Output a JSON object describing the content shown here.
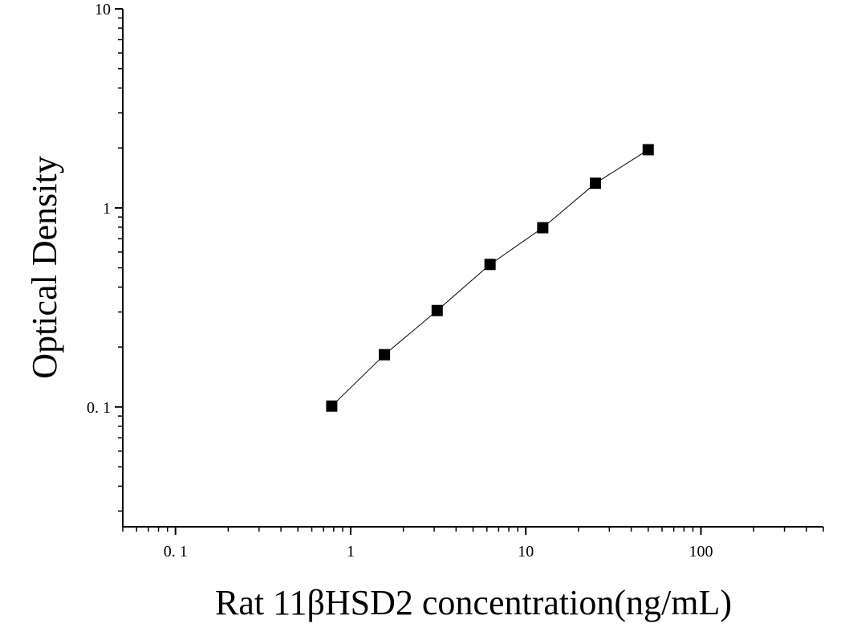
{
  "chart_data": {
    "type": "scatter",
    "title": "",
    "xlabel": "Rat 11βHSD2 concentration(ng/mL)",
    "ylabel": "Optical Density",
    "x_scale": "log",
    "y_scale": "log",
    "xlim": [
      0.05,
      500
    ],
    "ylim": [
      0.025,
      10
    ],
    "x_ticks": [
      {
        "value": 0.1,
        "label": "0. 1"
      },
      {
        "value": 1,
        "label": "1"
      },
      {
        "value": 10,
        "label": "10"
      },
      {
        "value": 100,
        "label": "100"
      }
    ],
    "y_ticks": [
      {
        "value": 0.1,
        "label": "0. 1"
      },
      {
        "value": 1,
        "label": "1"
      },
      {
        "value": 10,
        "label": "10"
      }
    ],
    "grid": false,
    "legend": "none",
    "marker": "square",
    "marker_color": "#000000",
    "line_color": "#000000",
    "series": [
      {
        "x": [
          0.78,
          1.56,
          3.12,
          6.25,
          12.5,
          25,
          50
        ],
        "y": [
          0.101,
          0.183,
          0.305,
          0.52,
          0.795,
          1.33,
          1.96
        ]
      }
    ]
  }
}
